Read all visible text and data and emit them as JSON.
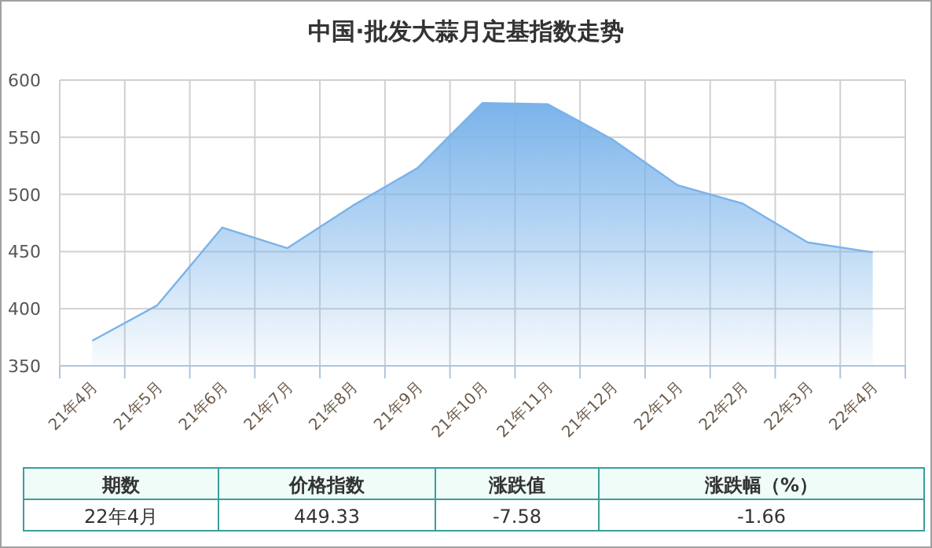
{
  "chart_data": {
    "type": "area",
    "title": "中国·批发大蒜月定基指数走势",
    "categories": [
      "21年4月",
      "21年5月",
      "21年6月",
      "21年7月",
      "21年8月",
      "21年9月",
      "21年10月",
      "21年11月",
      "21年12月",
      "22年1月",
      "22年2月",
      "22年3月",
      "22年4月"
    ],
    "values": [
      372,
      403,
      471,
      453,
      490,
      523,
      580,
      579,
      548,
      508,
      492,
      458,
      449.33
    ],
    "color": "#7ab3ea",
    "ylim": [
      350,
      600
    ],
    "yticks": [
      350,
      400,
      450,
      500,
      550,
      600
    ],
    "grid": true,
    "annotations": [
      "期数",
      "价格指数",
      "涨跌值",
      "涨跌幅（%）",
      "22年4月",
      "449.33",
      "-7.58",
      "-1.66"
    ]
  }
}
